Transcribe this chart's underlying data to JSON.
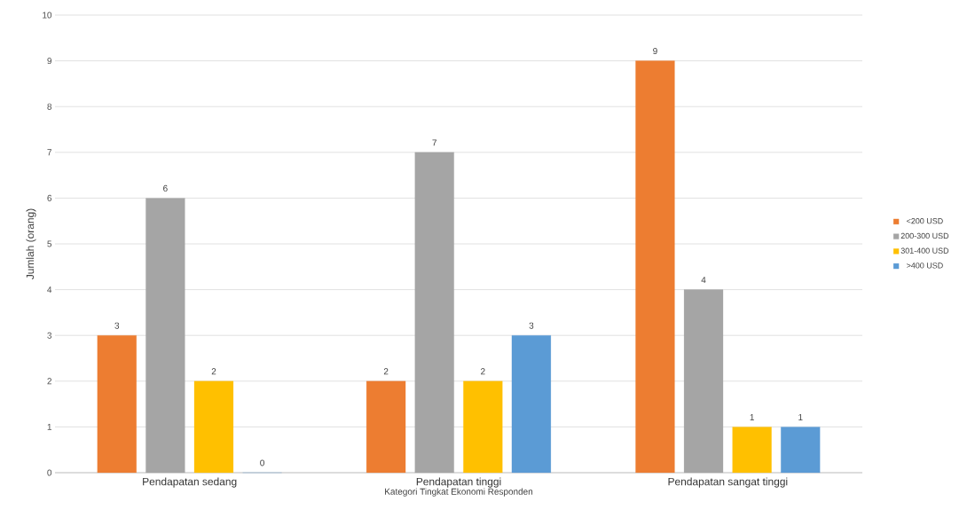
{
  "chart_data": {
    "type": "bar",
    "xlabel": "Kategori Tingkat Ekonomi Responden",
    "ylabel": "Jumlah (orang)",
    "categories": [
      "Pendapatan sedang",
      "Pendapatan tinggi",
      "Pendapatan sangat tinggi"
    ],
    "series": [
      {
        "name": "<200 USD",
        "color": "#ed7d31",
        "values": [
          3,
          2,
          9
        ]
      },
      {
        "name": "200-300 USD",
        "color": "#a5a5a5",
        "values": [
          6,
          7,
          4
        ]
      },
      {
        "name": "301-400 USD",
        "color": "#ffc000",
        "values": [
          2,
          2,
          1
        ]
      },
      {
        "name": ">400 USD",
        "color": "#5b9bd5",
        "values": [
          0,
          3,
          1
        ]
      }
    ],
    "ylim": [
      0,
      10
    ],
    "yticks": [
      0,
      1,
      2,
      3,
      4,
      5,
      6,
      7,
      8,
      9,
      10
    ],
    "grid": "y",
    "legend": "right",
    "data_labels": true
  }
}
